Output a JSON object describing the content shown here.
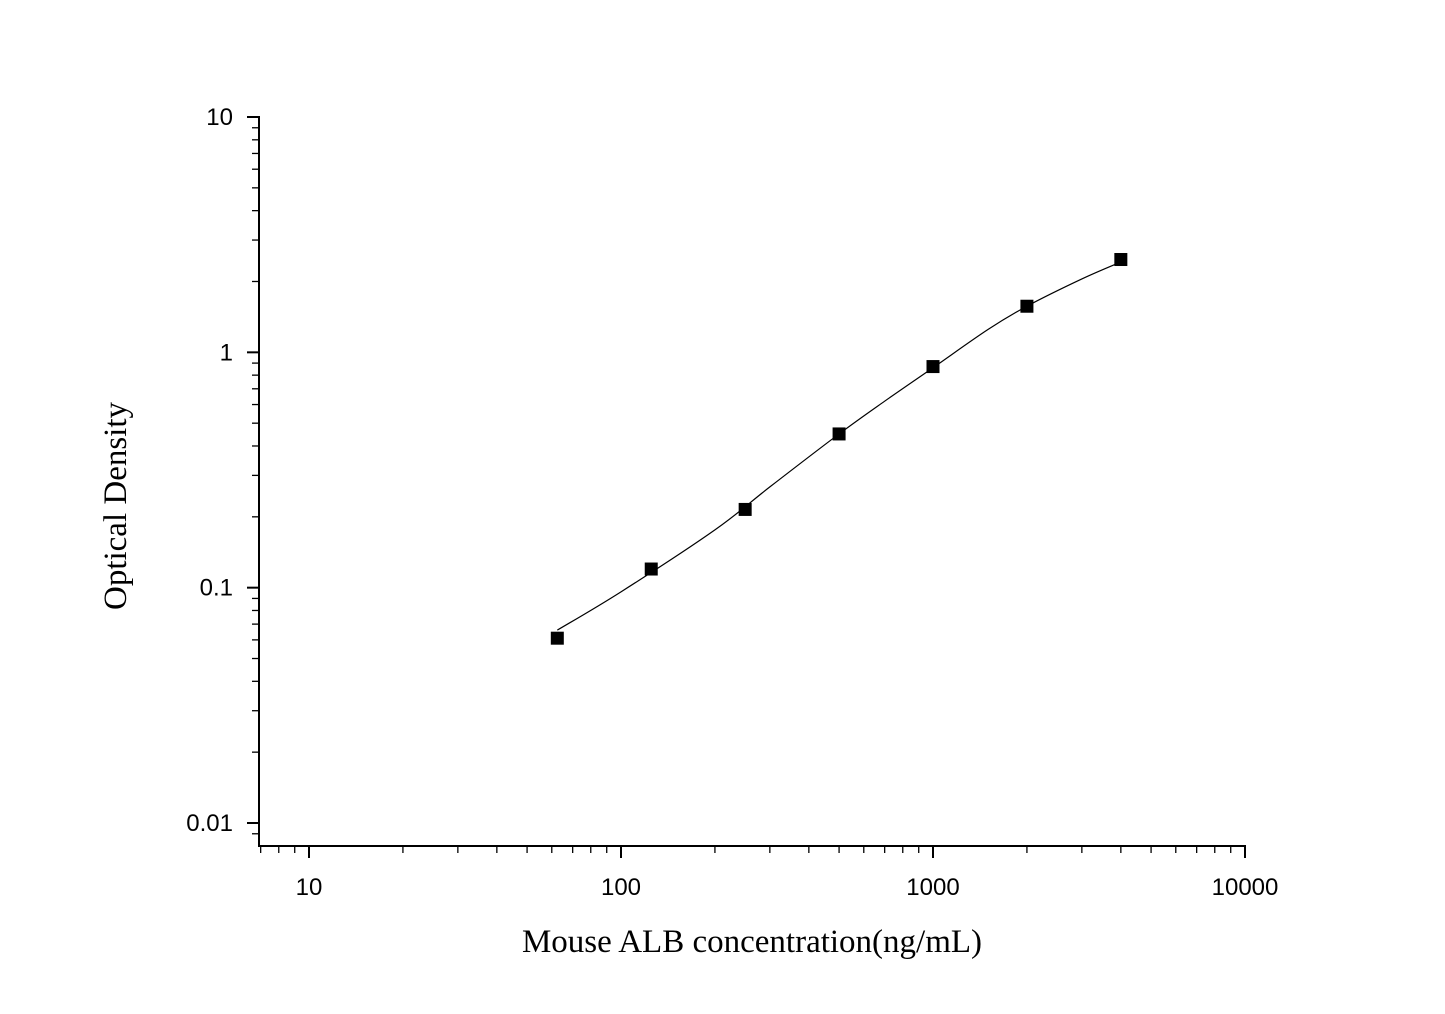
{
  "chart_data": {
    "type": "scatter",
    "title": "",
    "xlabel": "Mouse ALB concentration(ng/mL)",
    "ylabel": "Optical Density",
    "xscale": "log",
    "yscale": "log",
    "xlim": [
      7,
      10000
    ],
    "ylim": [
      0.0085,
      10
    ],
    "grid": false,
    "legend": "none",
    "x_ticks": [
      {
        "value": 10,
        "label": "10"
      },
      {
        "value": 100,
        "label": "100"
      },
      {
        "value": 1000,
        "label": "1000"
      },
      {
        "value": 10000,
        "label": "10000"
      }
    ],
    "y_ticks": [
      {
        "value": 0.01,
        "label": "0.01"
      },
      {
        "value": 0.1,
        "label": "0.1"
      },
      {
        "value": 1,
        "label": "1"
      },
      {
        "value": 10,
        "label": "10"
      }
    ],
    "series": [
      {
        "marker": "square",
        "color": "#000000",
        "x": [
          62.5,
          125,
          250,
          500,
          1000,
          2000,
          4000
        ],
        "y": [
          0.061,
          0.12,
          0.215,
          0.45,
          0.87,
          1.57,
          2.48
        ]
      }
    ],
    "fit_curve": {
      "color": "#000000",
      "x": [
        62.5,
        100,
        200,
        300,
        500,
        700,
        1000,
        1500,
        2000,
        3000,
        4000
      ],
      "y": [
        0.066,
        0.096,
        0.176,
        0.268,
        0.45,
        0.62,
        0.86,
        1.25,
        1.57,
        2.05,
        2.42
      ]
    }
  }
}
